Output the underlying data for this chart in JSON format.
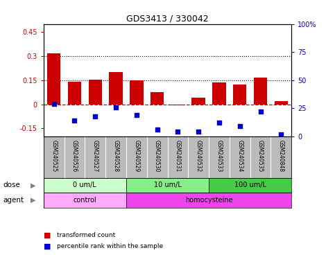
{
  "title": "GDS3413 / 330042",
  "samples": [
    "GSM240525",
    "GSM240526",
    "GSM240527",
    "GSM240528",
    "GSM240529",
    "GSM240530",
    "GSM240531",
    "GSM240532",
    "GSM240533",
    "GSM240534",
    "GSM240535",
    "GSM240848"
  ],
  "transformed_count": [
    0.315,
    0.14,
    0.155,
    0.2,
    0.15,
    0.075,
    -0.005,
    0.04,
    0.135,
    0.125,
    0.165,
    0.02
  ],
  "percentile_rank_pct": [
    29,
    14,
    18,
    26,
    19,
    6,
    4,
    4,
    12,
    9,
    22,
    2
  ],
  "bar_color": "#cc0000",
  "dot_color": "#0000cc",
  "ylim_left": [
    -0.2,
    0.5
  ],
  "ylim_right": [
    0,
    100
  ],
  "yticks_left": [
    -0.15,
    0.0,
    0.15,
    0.3,
    0.45
  ],
  "yticks_right": [
    0,
    25,
    50,
    75,
    100
  ],
  "ytick_labels_left": [
    "-0.15",
    "0",
    "0.15",
    "0.3",
    "0.45"
  ],
  "ytick_labels_right": [
    "0",
    "25",
    "50",
    "75",
    "100%"
  ],
  "dose_groups": [
    {
      "label": "0 um/L",
      "start": 0,
      "end": 3,
      "color": "#ccffcc"
    },
    {
      "label": "10 um/L",
      "start": 4,
      "end": 7,
      "color": "#88ee88"
    },
    {
      "label": "100 um/L",
      "start": 8,
      "end": 11,
      "color": "#44cc44"
    }
  ],
  "agent_groups": [
    {
      "label": "control",
      "start": 0,
      "end": 3,
      "color": "#ffaaff"
    },
    {
      "label": "homocysteine",
      "start": 4,
      "end": 11,
      "color": "#ee44ee"
    }
  ],
  "dose_label": "dose",
  "agent_label": "agent",
  "legend_bar_label": "transformed count",
  "legend_dot_label": "percentile rank within the sample",
  "bg_color": "#ffffff",
  "sample_bg_color": "#bbbbbb"
}
